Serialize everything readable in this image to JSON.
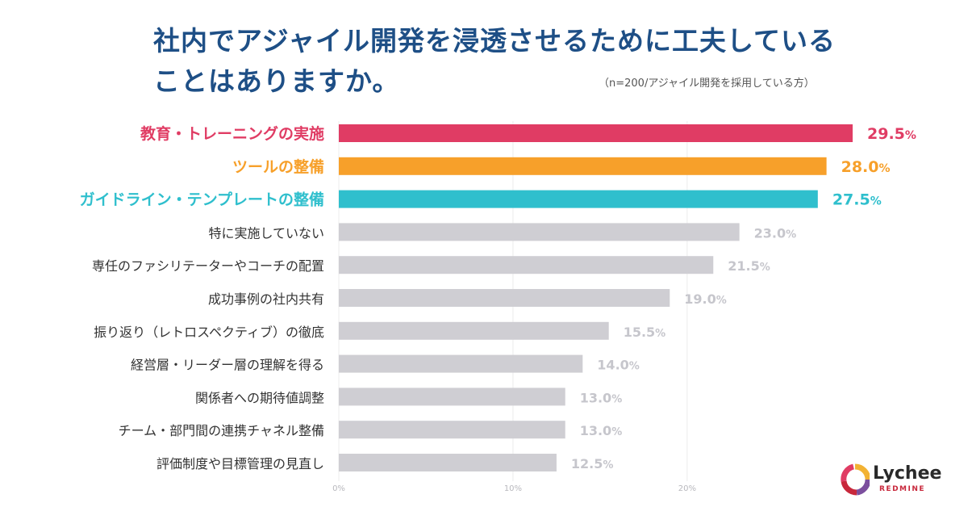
{
  "title_lines": [
    "社内でアジャイル開発を浸透させるために工夫している",
    "ことはありますか。"
  ],
  "note": "（n=200/アジャイル開発を採用している方）",
  "brand": {
    "word": "Lychee",
    "sub": "REDMINE"
  },
  "colors": {
    "top1": "#e03c64",
    "top2": "#f7a02a",
    "top3": "#2fbfcd",
    "other_bar": "#cfced3",
    "other_label": "#333333",
    "other_value": "#c6c6cc",
    "grid": "#ececec"
  },
  "chart_data": {
    "type": "bar",
    "orientation": "horizontal",
    "title": "社内でアジャイル開発を浸透させるために工夫していることはありますか。",
    "categories": [
      "教育・トレーニングの実施",
      "ツールの整備",
      "ガイドライン・テンプレートの整備",
      "特に実施していない",
      "専任のファシリテーターやコーチの配置",
      "成功事例の社内共有",
      "振り返り（レトロスペクティブ）の徹底",
      "経営層・リーダー層の理解を得る",
      "関係者への期待値調整",
      "チーム・部門間の連携チャネル整備",
      "評価制度や目標管理の見直し"
    ],
    "values": [
      29.5,
      28.0,
      27.5,
      23.0,
      21.5,
      19.0,
      15.5,
      14.0,
      13.0,
      13.0,
      12.5
    ],
    "value_labels": [
      "29.5",
      "28.0",
      "27.5",
      "23.0",
      "21.5",
      "19.0",
      "15.5",
      "14.0",
      "13.0",
      "13.0",
      "12.5"
    ],
    "unit": "%",
    "x_ticks": [
      "0%",
      "10%",
      "20%"
    ],
    "x_tick_values": [
      0,
      10,
      20
    ],
    "xlim": [
      0,
      29.5
    ],
    "highlighted": 3,
    "grid": true,
    "xlabel": "",
    "ylabel": ""
  }
}
